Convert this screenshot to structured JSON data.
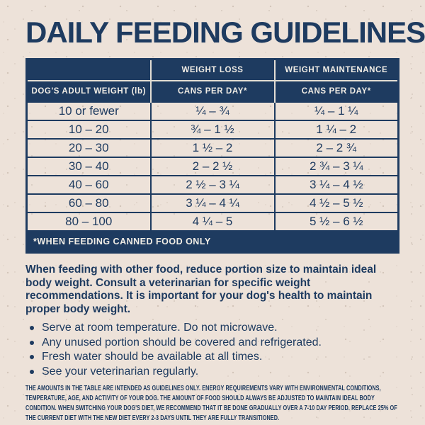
{
  "title": "DAILY FEEDING GUIDELINES",
  "colors": {
    "navy": "#1E3B60",
    "background": "#EDE2D9",
    "light_text": "#F2EEE6"
  },
  "table": {
    "column_groups": {
      "weight_loss": "WEIGHT LOSS",
      "weight_maintenance": "WEIGHT MAINTENANCE"
    },
    "headers": {
      "weight": "DOG'S ADULT WEIGHT (lb)",
      "loss_cans": "CANS PER DAY*",
      "maintenance_cans": "CANS PER DAY*"
    },
    "rows": [
      {
        "weight": "10 or fewer",
        "loss": "¼ – ¾",
        "maintenance": "¼ – 1 ¼"
      },
      {
        "weight": "10 – 20",
        "loss": "¾ – 1 ½",
        "maintenance": "1 ¼ – 2"
      },
      {
        "weight": "20 – 30",
        "loss": "1 ½ – 2",
        "maintenance": "2 – 2 ¾"
      },
      {
        "weight": "30 – 40",
        "loss": "2 – 2 ½",
        "maintenance": "2 ¾ – 3 ¼"
      },
      {
        "weight": "40 – 60",
        "loss": "2 ½ – 3 ¼",
        "maintenance": "3 ¼ – 4 ½"
      },
      {
        "weight": "60 – 80",
        "loss": "3 ¼ – 4 ¼",
        "maintenance": "4 ½ – 5 ½"
      },
      {
        "weight": "80 – 100",
        "loss": "4 ¼ – 5",
        "maintenance": "5 ½ – 6 ½"
      }
    ],
    "footnote": "*WHEN FEEDING CANNED FOOD ONLY"
  },
  "paragraph": "When feeding with other food, reduce portion size to maintain ideal body weight. Consult a veterinarian for specific weight recommendations. It is important for your dog's health to maintain proper body weight.",
  "bullets": [
    "Serve at room temperature. Do not microwave.",
    "Any unused portion should be covered and refrigerated.",
    "Fresh water should be available at all times.",
    "See your veterinarian regularly."
  ],
  "fine_print": "THE AMOUNTS IN THE TABLE ARE INTENDED AS GUIDELINES ONLY. ENERGY REQUIREMENTS VARY WITH ENVIRONMENTAL CONDITIONS, TEMPERATURE, AGE, AND ACTIVITY OF YOUR DOG. THE AMOUNT OF FOOD SHOULD ALWAYS BE ADJUSTED TO MAINTAIN IDEAL BODY CONDITION. WHEN SWITCHING YOUR DOG'S DIET, WE RECOMMEND THAT IT BE DONE GRADUALLY OVER A 7-10 DAY PERIOD. REPLACE 25% OF THE CURRENT DIET WITH THE NEW DIET EVERY 2-3 DAYS UNTIL THEY ARE FULLY TRANSITIONED."
}
